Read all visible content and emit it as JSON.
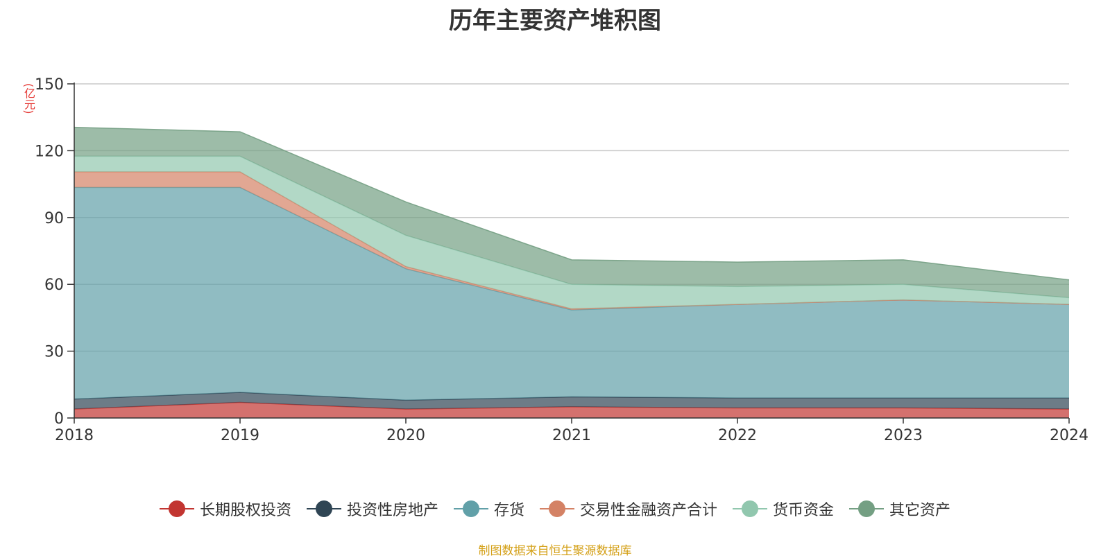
{
  "chart_data": {
    "type": "area",
    "stacked": true,
    "title": "历年主要资产堆积图",
    "unit_label": "(亿元)",
    "x": [
      "2018",
      "2019",
      "2020",
      "2021",
      "2022",
      "2023",
      "2024"
    ],
    "ylim": [
      0,
      150
    ],
    "yticks": [
      0,
      30,
      60,
      90,
      120,
      150
    ],
    "grid": true,
    "legend_position": "bottom",
    "series": [
      {
        "name": "长期股权投资",
        "color": "#c23531",
        "values": [
          4,
          7,
          4,
          5,
          4.5,
          4.5,
          4
        ]
      },
      {
        "name": "投资性房地产",
        "color": "#2f4554",
        "values": [
          4.5,
          4.5,
          4,
          4.5,
          4.5,
          4.5,
          5
        ]
      },
      {
        "name": "存货",
        "color": "#61a0a8",
        "values": [
          95,
          92,
          59,
          39,
          42,
          44,
          42
        ]
      },
      {
        "name": "交易性金融资产合计",
        "color": "#d48265",
        "values": [
          7,
          7,
          1,
          0.5,
          0,
          0,
          0
        ]
      },
      {
        "name": "货币资金",
        "color": "#91c7ae",
        "values": [
          7,
          7,
          14,
          11,
          8,
          7,
          3
        ]
      },
      {
        "name": "其它资产",
        "color": "#749f83",
        "values": [
          13,
          11,
          15,
          11,
          11,
          11,
          8
        ]
      }
    ]
  },
  "footer": "制图数据来自恒生聚源数据库"
}
